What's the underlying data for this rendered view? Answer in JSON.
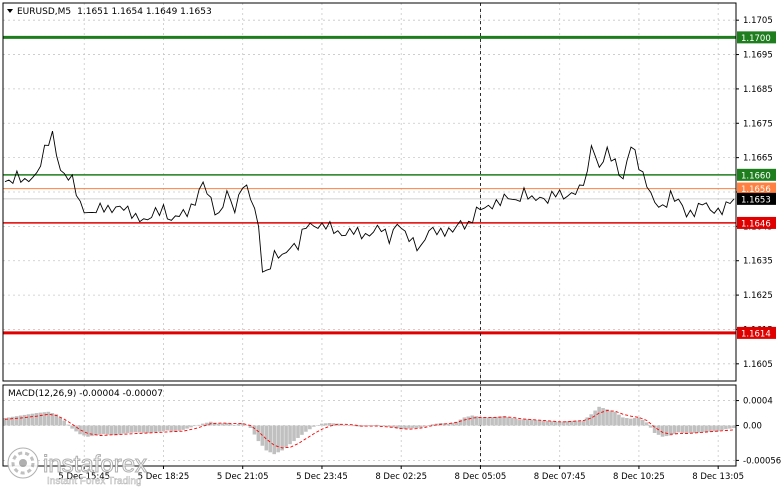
{
  "chart_data": [
    {
      "type": "line",
      "title": "EURUSD,M5",
      "ohlc_text": "1.1651 1.1654 1.1649 1.1653",
      "ylim": [
        1.16,
        1.171
      ],
      "y_ticks": [
        "1.1705",
        "1.1695",
        "1.1685",
        "1.1675",
        "1.1665",
        "1.1655",
        "1.1645",
        "1.1635",
        "1.1625",
        "1.1615",
        "1.1605"
      ],
      "y_tick_values": [
        1.1705,
        1.1695,
        1.1685,
        1.1675,
        1.1665,
        1.1655,
        1.1645,
        1.1635,
        1.1625,
        1.1615,
        1.1605
      ],
      "x_ticks": [
        "5 Dec 15:45",
        "5 Dec 18:25",
        "5 Dec 21:05",
        "5 Dec 23:45",
        "8 Dec 02:25",
        "8 Dec 05:05",
        "8 Dec 07:45",
        "8 Dec 10:25",
        "8 Dec 13:05"
      ],
      "x_tick_index": [
        20,
        40,
        60,
        80,
        100,
        120,
        140,
        160,
        180
      ],
      "x_count": 185,
      "levels": [
        {
          "value": 1.17,
          "label": "1.1700",
          "color": "#1e7e1e",
          "width": 3
        },
        {
          "value": 1.166,
          "label": "1.1660",
          "color": "#1e7e1e",
          "width": 1.5
        },
        {
          "value": 1.1656,
          "label": "1.1656",
          "color": "#ff8040",
          "width": 1
        },
        {
          "value": 1.1646,
          "label": "1.1646",
          "color": "#e00000",
          "width": 1.5
        },
        {
          "value": 1.1614,
          "label": "1.1614",
          "color": "#e00000",
          "width": 3
        }
      ],
      "current_price": {
        "value": 1.1653,
        "label": "1.1653",
        "color": "#000000"
      },
      "grid": true,
      "cursor_index": 120,
      "series": [
        {
          "keypoints": [
            [
              0,
              1.1658
            ],
            [
              3,
              1.166
            ],
            [
              5,
              1.1657
            ],
            [
              8,
              1.1661
            ],
            [
              10,
              1.1667
            ],
            [
              12,
              1.1671
            ],
            [
              14,
              1.1662
            ],
            [
              17,
              1.1658
            ],
            [
              19,
              1.1651
            ],
            [
              22,
              1.1649
            ],
            [
              25,
              1.165
            ],
            [
              28,
              1.1651
            ],
            [
              31,
              1.1649
            ],
            [
              34,
              1.1648
            ],
            [
              36,
              1.1646
            ],
            [
              38,
              1.1649
            ],
            [
              40,
              1.1651
            ],
            [
              42,
              1.1646
            ],
            [
              44,
              1.1648
            ],
            [
              46,
              1.165
            ],
            [
              48,
              1.1652
            ],
            [
              50,
              1.1657
            ],
            [
              52,
              1.1653
            ],
            [
              54,
              1.1648
            ],
            [
              56,
              1.1654
            ],
            [
              58,
              1.165
            ],
            [
              60,
              1.1658
            ],
            [
              62,
              1.1653
            ],
            [
              64,
              1.1645
            ],
            [
              65,
              1.1633
            ],
            [
              66,
              1.1632
            ],
            [
              68,
              1.1636
            ],
            [
              70,
              1.1636
            ],
            [
              72,
              1.164
            ],
            [
              74,
              1.1639
            ],
            [
              76,
              1.1645
            ],
            [
              78,
              1.1646
            ],
            [
              80,
              1.1645
            ],
            [
              83,
              1.1644
            ],
            [
              86,
              1.1643
            ],
            [
              89,
              1.1643
            ],
            [
              92,
              1.1643
            ],
            [
              95,
              1.1644
            ],
            [
              97,
              1.1642
            ],
            [
              99,
              1.1646
            ],
            [
              101,
              1.1642
            ],
            [
              103,
              1.1641
            ],
            [
              105,
              1.1639
            ],
            [
              107,
              1.1643
            ],
            [
              109,
              1.1644
            ],
            [
              111,
              1.1644
            ],
            [
              113,
              1.1643
            ],
            [
              115,
              1.1646
            ],
            [
              117,
              1.1646
            ],
            [
              119,
              1.1649
            ],
            [
              121,
              1.165
            ],
            [
              123,
              1.1652
            ],
            [
              125,
              1.1652
            ],
            [
              127,
              1.1653
            ],
            [
              129,
              1.1653
            ],
            [
              131,
              1.1655
            ],
            [
              133,
              1.1652
            ],
            [
              135,
              1.1654
            ],
            [
              137,
              1.1653
            ],
            [
              139,
              1.1654
            ],
            [
              141,
              1.1654
            ],
            [
              143,
              1.1655
            ],
            [
              145,
              1.1655
            ],
            [
              147,
              1.166
            ],
            [
              148,
              1.167
            ],
            [
              150,
              1.1662
            ],
            [
              152,
              1.1666
            ],
            [
              154,
              1.1664
            ],
            [
              156,
              1.1659
            ],
            [
              158,
              1.1668
            ],
            [
              160,
              1.1663
            ],
            [
              162,
              1.1658
            ],
            [
              164,
              1.1651
            ],
            [
              166,
              1.165
            ],
            [
              168,
              1.1655
            ],
            [
              170,
              1.1652
            ],
            [
              172,
              1.1648
            ],
            [
              174,
              1.165
            ],
            [
              176,
              1.1652
            ],
            [
              178,
              1.1649
            ],
            [
              180,
              1.165
            ],
            [
              182,
              1.1651
            ],
            [
              184,
              1.1653
            ]
          ]
        }
      ]
    },
    {
      "type": "bar",
      "title": "MACD(12,26,9) -0.00004 -0.00007",
      "ylim": [
        -0.00065,
        0.00065
      ],
      "y_ticks": [
        "0.0004",
        "0.00",
        "-0.00056"
      ],
      "y_tick_values": [
        0.0004,
        0.0,
        -0.00056
      ],
      "histogram_color": "#c0c0c0",
      "signal_color": "#ff0000",
      "histogram_keypoints": [
        [
          0,
          0.00012
        ],
        [
          4,
          0.00016
        ],
        [
          8,
          0.0002
        ],
        [
          11,
          0.00022
        ],
        [
          13,
          0.00018
        ],
        [
          15,
          8e-05
        ],
        [
          17,
          -5e-05
        ],
        [
          19,
          -0.00014
        ],
        [
          21,
          -0.00018
        ],
        [
          23,
          -0.00016
        ],
        [
          25,
          -0.00014
        ],
        [
          28,
          -0.00016
        ],
        [
          30,
          -0.00013
        ],
        [
          33,
          -0.00011
        ],
        [
          36,
          -0.00012
        ],
        [
          39,
          -0.0001
        ],
        [
          41,
          -8e-05
        ],
        [
          43,
          -0.0001
        ],
        [
          45,
          -7e-05
        ],
        [
          47,
          -3e-05
        ],
        [
          50,
          3e-05
        ],
        [
          52,
          6e-05
        ],
        [
          54,
          3e-05
        ],
        [
          56,
          4e-05
        ],
        [
          58,
          1e-05
        ],
        [
          60,
          4e-05
        ],
        [
          62,
          -4e-05
        ],
        [
          64,
          -0.00025
        ],
        [
          66,
          -0.0004
        ],
        [
          68,
          -0.00046
        ],
        [
          70,
          -0.0004
        ],
        [
          72,
          -0.0003
        ],
        [
          74,
          -0.0002
        ],
        [
          76,
          -0.0001
        ],
        [
          78,
          -2e-05
        ],
        [
          80,
          3e-05
        ],
        [
          82,
          4e-05
        ],
        [
          84,
          3e-05
        ],
        [
          86,
          1e-05
        ],
        [
          88,
          -1e-05
        ],
        [
          90,
          -2e-05
        ],
        [
          92,
          -1e-05
        ],
        [
          94,
          1e-05
        ],
        [
          96,
          -1e-05
        ],
        [
          98,
          -3e-05
        ],
        [
          100,
          -6e-05
        ],
        [
          102,
          -5e-05
        ],
        [
          104,
          -4e-05
        ],
        [
          106,
          -2e-05
        ],
        [
          108,
          2e-05
        ],
        [
          110,
          4e-05
        ],
        [
          112,
          3e-05
        ],
        [
          114,
          6e-05
        ],
        [
          116,
          0.00013
        ],
        [
          118,
          0.00016
        ],
        [
          120,
          0.00014
        ],
        [
          122,
          0.00013
        ],
        [
          124,
          0.00014
        ],
        [
          126,
          0.00015
        ],
        [
          128,
          0.00012
        ],
        [
          130,
          0.0001
        ],
        [
          132,
          0.0001
        ],
        [
          134,
          9e-05
        ],
        [
          136,
          8e-05
        ],
        [
          138,
          7e-05
        ],
        [
          140,
          6e-05
        ],
        [
          142,
          7e-05
        ],
        [
          144,
          8e-05
        ],
        [
          146,
          8e-05
        ],
        [
          148,
          0.00018
        ],
        [
          150,
          0.0003
        ],
        [
          152,
          0.00026
        ],
        [
          154,
          0.00022
        ],
        [
          156,
          0.00013
        ],
        [
          158,
          0.00011
        ],
        [
          160,
          0.00013
        ],
        [
          162,
          5e-05
        ],
        [
          164,
          -0.00012
        ],
        [
          166,
          -0.00018
        ],
        [
          168,
          -0.00016
        ],
        [
          170,
          -0.00011
        ],
        [
          172,
          -0.00013
        ],
        [
          174,
          -0.00012
        ],
        [
          176,
          -0.00011
        ],
        [
          178,
          -0.0001
        ],
        [
          180,
          -9e-05
        ],
        [
          182,
          -6e-05
        ],
        [
          184,
          -4e-05
        ]
      ],
      "signal_keypoints": [
        [
          0,
          0.0001
        ],
        [
          4,
          0.00012
        ],
        [
          8,
          0.00015
        ],
        [
          11,
          0.00018
        ],
        [
          13,
          0.00016
        ],
        [
          15,
          0.0001
        ],
        [
          17,
          2e-05
        ],
        [
          19,
          -7e-05
        ],
        [
          21,
          -0.00013
        ],
        [
          24,
          -0.00016
        ],
        [
          27,
          -0.00015
        ],
        [
          30,
          -0.00014
        ],
        [
          33,
          -0.00013
        ],
        [
          36,
          -0.00012
        ],
        [
          39,
          -0.00011
        ],
        [
          42,
          -0.0001
        ],
        [
          45,
          -9e-05
        ],
        [
          48,
          -5e-05
        ],
        [
          50,
          -1e-05
        ],
        [
          52,
          3e-05
        ],
        [
          55,
          4e-05
        ],
        [
          58,
          3e-05
        ],
        [
          60,
          3e-05
        ],
        [
          62,
          0.0
        ],
        [
          64,
          -0.0001
        ],
        [
          66,
          -0.00022
        ],
        [
          68,
          -0.00032
        ],
        [
          70,
          -0.00036
        ],
        [
          72,
          -0.00035
        ],
        [
          74,
          -0.00029
        ],
        [
          76,
          -0.00021
        ],
        [
          78,
          -0.00013
        ],
        [
          80,
          -6e-05
        ],
        [
          82,
          -1e-05
        ],
        [
          84,
          2e-05
        ],
        [
          86,
          2e-05
        ],
        [
          88,
          1e-05
        ],
        [
          90,
          -1e-05
        ],
        [
          92,
          -1e-05
        ],
        [
          94,
          -1e-05
        ],
        [
          96,
          -2e-05
        ],
        [
          98,
          -3e-05
        ],
        [
          100,
          -5e-05
        ],
        [
          102,
          -6e-05
        ],
        [
          104,
          -5e-05
        ],
        [
          106,
          -3e-05
        ],
        [
          108,
          0.0
        ],
        [
          110,
          2e-05
        ],
        [
          112,
          3e-05
        ],
        [
          114,
          5e-05
        ],
        [
          116,
          9e-05
        ],
        [
          118,
          0.00012
        ],
        [
          120,
          0.00013
        ],
        [
          122,
          0.00013
        ],
        [
          124,
          0.00013
        ],
        [
          126,
          0.00014
        ],
        [
          128,
          0.00013
        ],
        [
          130,
          0.00011
        ],
        [
          132,
          0.0001
        ],
        [
          134,
          9e-05
        ],
        [
          136,
          8e-05
        ],
        [
          138,
          7e-05
        ],
        [
          140,
          6e-05
        ],
        [
          142,
          6e-05
        ],
        [
          144,
          7e-05
        ],
        [
          146,
          8e-05
        ],
        [
          148,
          0.00012
        ],
        [
          150,
          0.0002
        ],
        [
          152,
          0.00024
        ],
        [
          154,
          0.00023
        ],
        [
          156,
          0.00018
        ],
        [
          158,
          0.00015
        ],
        [
          160,
          0.00013
        ],
        [
          162,
          8e-05
        ],
        [
          164,
          -3e-05
        ],
        [
          166,
          -0.00011
        ],
        [
          168,
          -0.00014
        ],
        [
          170,
          -0.00013
        ],
        [
          172,
          -0.00013
        ],
        [
          174,
          -0.00012
        ],
        [
          176,
          -0.00011
        ],
        [
          178,
          -0.0001
        ],
        [
          180,
          -9e-05
        ],
        [
          182,
          -8e-05
        ],
        [
          184,
          -7e-05
        ]
      ]
    }
  ],
  "watermark": {
    "brand": "instaforex",
    "tagline": "Instant Forex Trading"
  },
  "colors": {
    "background": "#ffffff",
    "border": "#000000",
    "grid": "#c8c8c8",
    "price_line": "#000000"
  }
}
